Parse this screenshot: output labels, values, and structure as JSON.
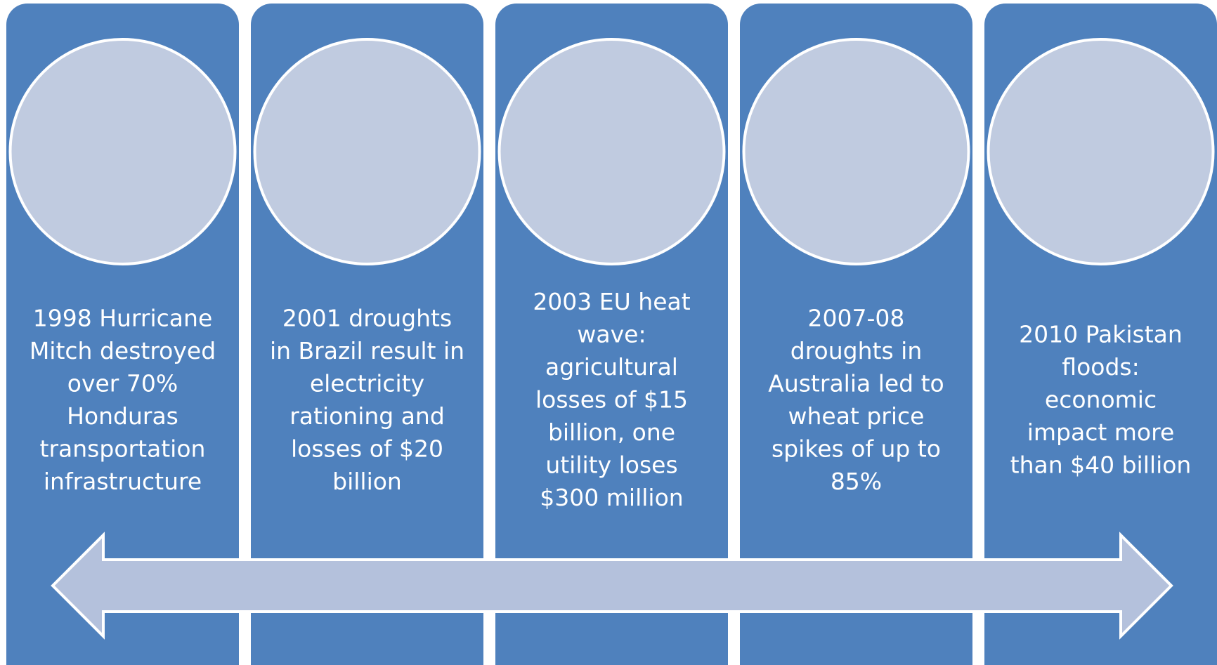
{
  "panels": [
    {
      "lines": [
        "1998 Hurricane",
        "Mitch destroyed",
        "over 70%",
        "Honduras",
        "transportation",
        "infrastructure"
      ]
    },
    {
      "lines": [
        "2001 droughts",
        "in Brazil result in",
        "electricity",
        "rationing and",
        "losses of $20",
        "billion"
      ]
    },
    {
      "lines": [
        "2003 EU heat",
        "wave:",
        "agricultural",
        "losses of $15",
        "billion, one",
        "utility loses",
        "$300 million"
      ]
    },
    {
      "lines": [
        "2007-08",
        "droughts in",
        "Australia led to",
        "wheat price",
        "spikes of up to",
        "85%"
      ]
    },
    {
      "lines": [
        "2010 Pakistan",
        "floods:",
        "economic",
        "impact more",
        "than $40 billion"
      ]
    }
  ]
}
